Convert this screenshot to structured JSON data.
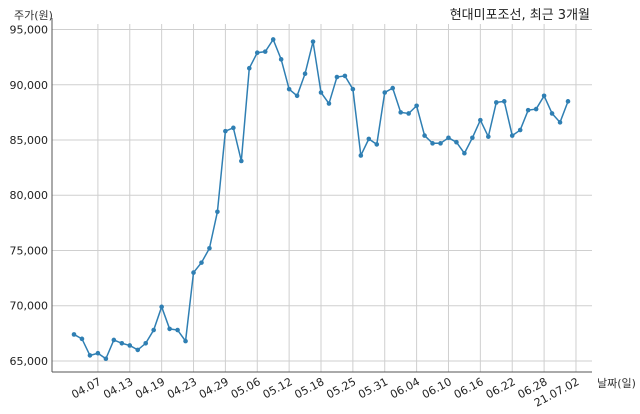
{
  "chart_data": {
    "type": "line",
    "title": "현대미포조선, 최근 3개월",
    "ylabel": "주가(원)",
    "xlabel": "날짜(일)",
    "ylim": [
      64000,
      95500
    ],
    "yticks": [
      65000,
      70000,
      75000,
      80000,
      85000,
      90000,
      95000
    ],
    "ytick_labels": [
      "65,000",
      "70,000",
      "75,000",
      "80,000",
      "85,000",
      "90,000",
      "95,000"
    ],
    "grid": true,
    "xtick_labels": [
      "04.07",
      "04.13",
      "04.19",
      "04.23",
      "04.29",
      "05.06",
      "05.12",
      "05.18",
      "05.25",
      "05.31",
      "06.04",
      "06.10",
      "06.16",
      "06.22",
      "06.28",
      "21.07.02"
    ],
    "xtick_index": [
      3,
      7,
      11,
      15,
      19,
      23,
      27,
      31,
      35,
      39,
      43,
      47,
      51,
      55,
      59,
      63
    ],
    "series": [
      {
        "color": "#2f7fb3",
        "values": [
          67400,
          67000,
          65500,
          65700,
          65200,
          66900,
          66600,
          66400,
          66000,
          66600,
          67800,
          69900,
          67900,
          67800,
          66800,
          73000,
          73900,
          75200,
          78500,
          85800,
          86100,
          83100,
          91500,
          92900,
          93000,
          94100,
          92300,
          89600,
          89000,
          91000,
          93900,
          89300,
          88300,
          90700,
          90800,
          89600,
          83600,
          85100,
          84600,
          89300,
          89700,
          87500,
          87400,
          88100,
          85400,
          84700,
          84700,
          85200,
          84800,
          83800,
          85200,
          86800,
          85300,
          88400,
          88500,
          85400,
          85900,
          87700,
          87800,
          89000,
          87400,
          86600,
          88500
        ]
      }
    ]
  }
}
